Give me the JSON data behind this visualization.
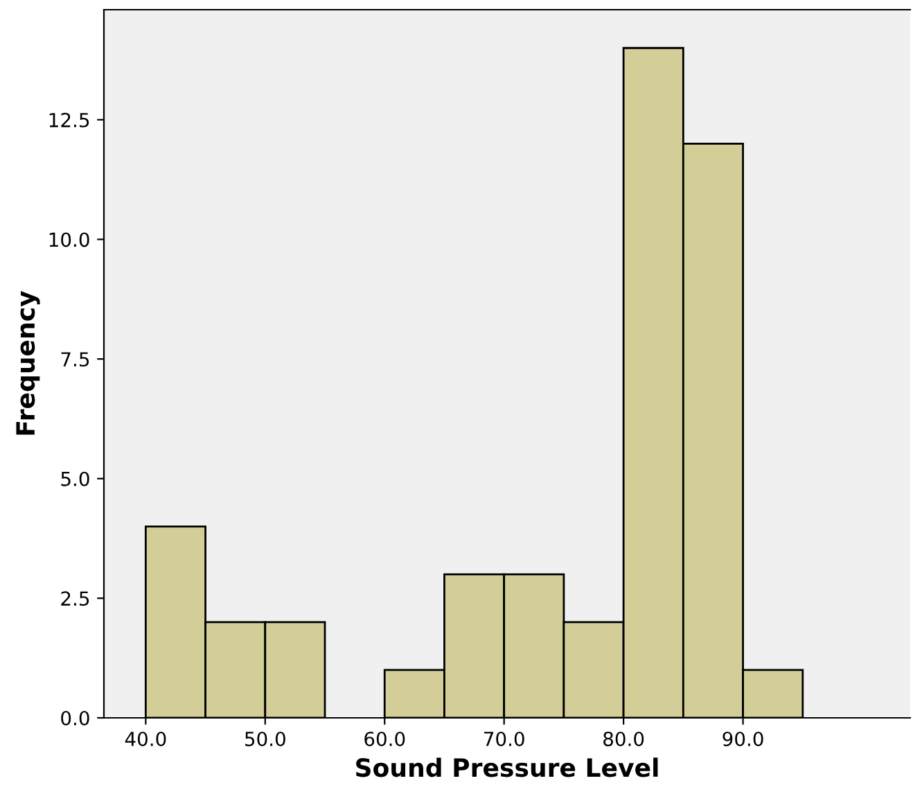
{
  "chart_data": {
    "type": "histogram",
    "xlabel": "Sound Pressure Level",
    "ylabel": "Frequency",
    "bins": [
      40,
      45,
      50,
      55,
      60,
      65,
      70,
      75,
      80,
      85,
      90,
      95
    ],
    "values": [
      4,
      2,
      2,
      0,
      1,
      3,
      3,
      2,
      14,
      12,
      1
    ],
    "color": "#d3ce97",
    "xlim": [
      36.5,
      104
    ],
    "xticks": [
      {
        "value": 40,
        "label": "40.0"
      },
      {
        "value": 50,
        "label": "50.0"
      },
      {
        "value": 60,
        "label": "60.0"
      },
      {
        "value": 70,
        "label": "70.0"
      },
      {
        "value": 80,
        "label": "80.0"
      },
      {
        "value": 90,
        "label": "90.0"
      }
    ],
    "ylim": [
      0,
      14.8
    ],
    "yticks": [
      {
        "value": 0,
        "label": "0.0"
      },
      {
        "value": 2.5,
        "label": "2.5"
      },
      {
        "value": 5,
        "label": "5.0"
      },
      {
        "value": 7.5,
        "label": "7.5"
      },
      {
        "value": 10,
        "label": "10.0"
      },
      {
        "value": 12.5,
        "label": "12.5"
      }
    ],
    "grid": false
  }
}
